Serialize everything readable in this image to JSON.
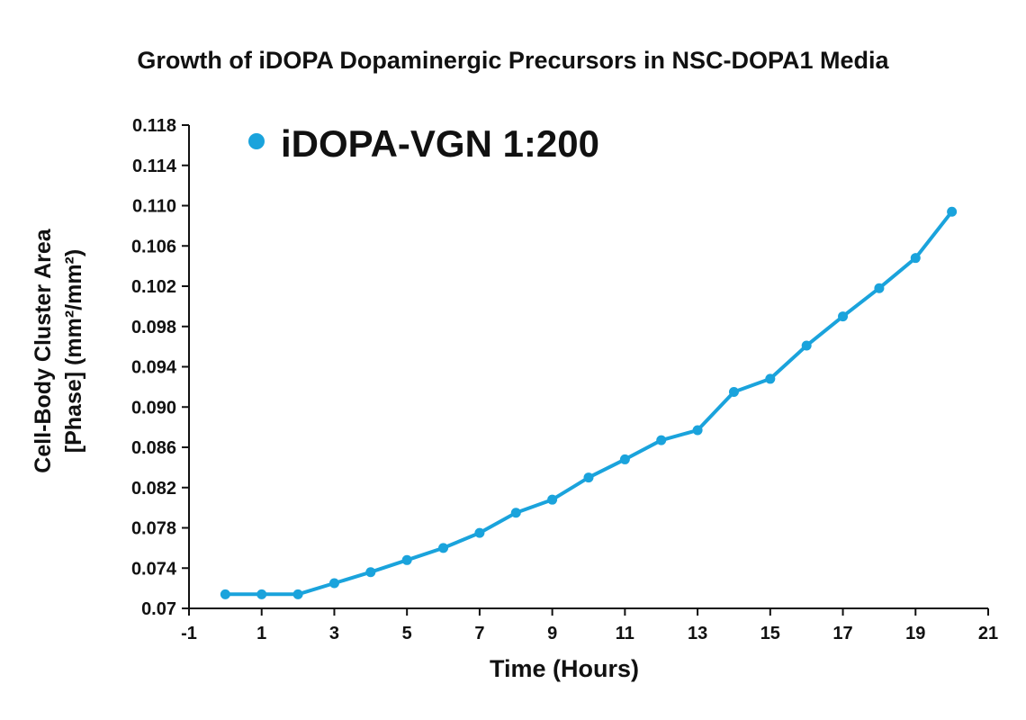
{
  "chart_data": {
    "type": "line",
    "title": "Growth of iDOPA Dopaminergic Precursors in NSC-DOPA1 Media",
    "xlabel": "Time (Hours)",
    "ylabel_line1": "Cell-Body Cluster Area",
    "ylabel_line2": "[Phase] (mm²/mm²)",
    "xlim": [
      -1,
      21
    ],
    "ylim": [
      0.07,
      0.118
    ],
    "xticks": [
      "-1",
      "1",
      "3",
      "5",
      "7",
      "9",
      "11",
      "13",
      "15",
      "17",
      "19",
      "21"
    ],
    "yticks": [
      "0.07",
      "0.074",
      "0.078",
      "0.082",
      "0.086",
      "0.090",
      "0.094",
      "0.098",
      "0.102",
      "0.106",
      "0.110",
      "0.114",
      "0.118"
    ],
    "legend_position": "top-left",
    "grid": false,
    "series": [
      {
        "name": "iDOPA-VGN 1:200",
        "color": "#1aa3dc",
        "x": [
          0,
          1,
          2,
          3,
          4,
          5,
          6,
          7,
          8,
          9,
          10,
          11,
          12,
          13,
          14,
          15,
          16,
          17,
          18,
          19,
          20
        ],
        "values": [
          0.0714,
          0.0714,
          0.0714,
          0.0725,
          0.0736,
          0.0748,
          0.076,
          0.0775,
          0.0795,
          0.0808,
          0.083,
          0.0848,
          0.0867,
          0.0877,
          0.0915,
          0.0928,
          0.0961,
          0.099,
          0.1018,
          0.1048,
          0.1094
        ]
      }
    ]
  }
}
